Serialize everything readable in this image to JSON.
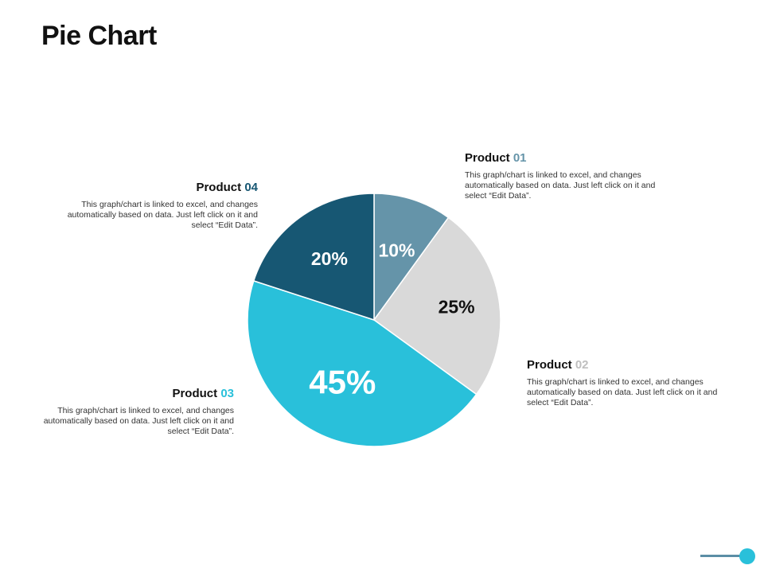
{
  "page": {
    "title": "Pie Chart"
  },
  "chart_data": {
    "type": "pie",
    "start_angle_deg": 0,
    "direction": "clockwise",
    "slices": [
      {
        "key": "p01",
        "label": "Product 01",
        "value": 10,
        "display": "10%",
        "color": "#6594a9",
        "label_color": "#ffffff"
      },
      {
        "key": "p02",
        "label": "Product 02",
        "value": 25,
        "display": "25%",
        "color": "#d9d9d9",
        "label_color": "#111111"
      },
      {
        "key": "p03",
        "label": "Product 03",
        "value": 45,
        "display": "45%",
        "color": "#29c0da",
        "label_color": "#ffffff"
      },
      {
        "key": "p04",
        "label": "Product 04",
        "value": 20,
        "display": "20%",
        "color": "#175773",
        "label_color": "#ffffff"
      }
    ]
  },
  "callouts": {
    "p01": {
      "word": "Product",
      "num": "01",
      "num_color": "#6594a9",
      "text": "This graph/chart is linked to excel, and changes automatically based on data. Just left click on it and select “Edit Data”."
    },
    "p02": {
      "word": "Product",
      "num": "02",
      "num_color": "#bfbfbf",
      "text": "This graph/chart is linked to excel, and changes automatically based on data. Just left click on it and select “Edit Data”."
    },
    "p03": {
      "word": "Product",
      "num": "03",
      "num_color": "#29c0da",
      "text": "This graph/chart is linked to excel, and changes automatically based on data. Just left click on it and select “Edit Data”."
    },
    "p04": {
      "word": "Product",
      "num": "04",
      "num_color": "#175773",
      "text": "This graph/chart is linked to excel, and changes automatically based on data. Just left click on it and select “Edit Data”."
    }
  },
  "footer": {
    "line_color": "#5b8ea6",
    "dot_color": "#29c0da"
  }
}
